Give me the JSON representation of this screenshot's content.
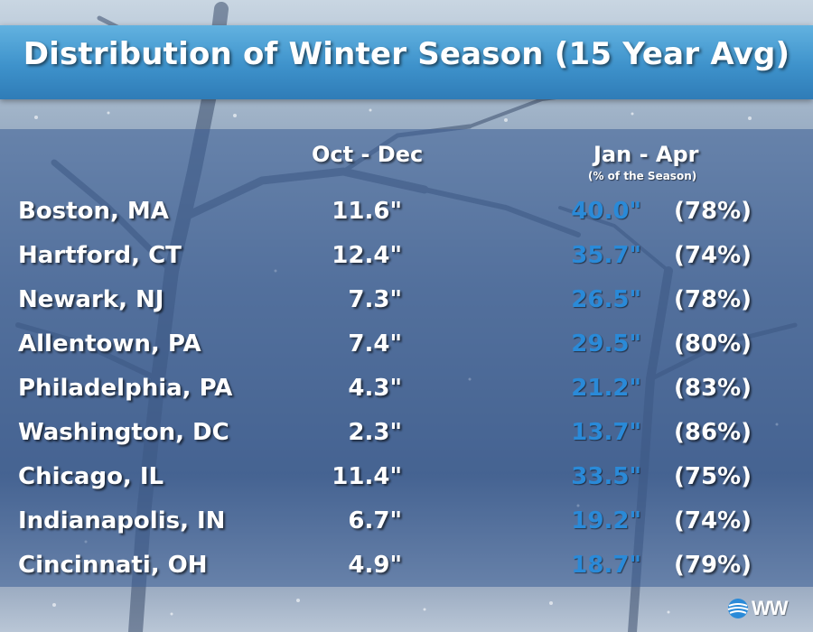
{
  "chart_data": {
    "type": "table",
    "title": "Distribution of Winter Season (15 Year Avg)",
    "columns": [
      {
        "label": "Oct - Dec",
        "sublabel": ""
      },
      {
        "label": "Jan - Apr",
        "sublabel": "(% of the Season)"
      }
    ],
    "rows": [
      {
        "city": "Boston, MA",
        "oct_dec": "11.6\"",
        "jan_apr": "40.0\"",
        "pct": "(78%)"
      },
      {
        "city": "Hartford, CT",
        "oct_dec": "12.4\"",
        "jan_apr": "35.7\"",
        "pct": "(74%)"
      },
      {
        "city": "Newark, NJ",
        "oct_dec": "7.3\"",
        "jan_apr": "26.5\"",
        "pct": "(78%)"
      },
      {
        "city": "Allentown, PA",
        "oct_dec": "7.4\"",
        "jan_apr": "29.5\"",
        "pct": "(80%)"
      },
      {
        "city": "Philadelphia, PA",
        "oct_dec": "4.3\"",
        "jan_apr": "21.2\"",
        "pct": "(83%)"
      },
      {
        "city": "Washington, DC",
        "oct_dec": "2.3\"",
        "jan_apr": "13.7\"",
        "pct": "(86%)"
      },
      {
        "city": "Chicago, IL",
        "oct_dec": "11.4\"",
        "jan_apr": "33.5\"",
        "pct": "(75%)"
      },
      {
        "city": "Indianapolis, IN",
        "oct_dec": "6.7\"",
        "jan_apr": "19.2\"",
        "pct": "(74%)"
      },
      {
        "city": "Cincinnati, OH",
        "oct_dec": "4.9\"",
        "jan_apr": "18.7\"",
        "pct": "(79%)"
      }
    ]
  },
  "branding": {
    "logo_text": "WW",
    "logo_color": "#2a8ad8"
  },
  "colors": {
    "title_bar": "#3e92cb",
    "jan_apr_value": "#2a8ad8",
    "text": "#ffffff"
  }
}
